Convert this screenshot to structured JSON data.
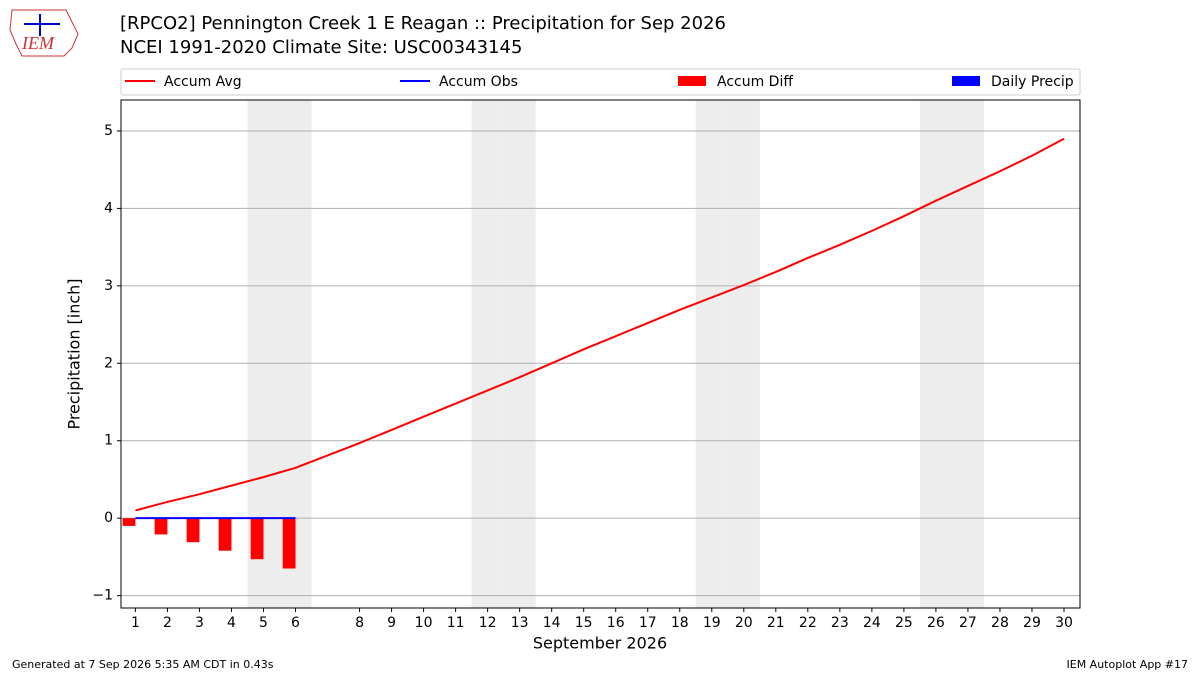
{
  "chart_data": {
    "type": "line",
    "title": "[RPCO2] Pennington Creek 1 E Reagan :: Precipitation for Sep 2026",
    "subtitle": "NCEI 1991-2020 Climate Site: USC00343145",
    "logo": "IEM",
    "x_label": "September 2026",
    "y_label": "Precipitation [inch]",
    "footer_left": "Generated at 7 Sep 2026 5:35 AM CDT in 0.43s",
    "footer_right": "IEM Autoplot App #17",
    "x": [
      1,
      2,
      3,
      4,
      5,
      6,
      7,
      8,
      9,
      10,
      11,
      12,
      13,
      14,
      15,
      16,
      17,
      18,
      19,
      20,
      21,
      22,
      23,
      24,
      25,
      26,
      27,
      28,
      29,
      30
    ],
    "xlim": [
      0.55,
      30.5
    ],
    "xticks": [
      1,
      2,
      3,
      4,
      5,
      6,
      8,
      9,
      10,
      11,
      12,
      13,
      14,
      15,
      16,
      17,
      18,
      19,
      20,
      21,
      22,
      23,
      24,
      25,
      26,
      27,
      28,
      29,
      30
    ],
    "ylim": [
      -1.16,
      5.4
    ],
    "yticks": [
      {
        "value": -1,
        "label": "−1"
      },
      0,
      1,
      2,
      3,
      4,
      5
    ],
    "grid": true,
    "shaded_days": [
      5,
      6,
      12,
      13,
      19,
      20,
      26,
      27
    ],
    "series": [
      {
        "name": "Accum Avg",
        "type": "line",
        "color": "#ff0000",
        "values": [
          0.1,
          0.21,
          0.31,
          0.42,
          0.53,
          0.65,
          0.81,
          0.97,
          1.14,
          1.31,
          1.48,
          1.65,
          1.82,
          2.0,
          2.18,
          2.35,
          2.52,
          2.69,
          2.85,
          3.01,
          3.18,
          3.36,
          3.53,
          3.71,
          3.9,
          4.1,
          4.29,
          4.48,
          4.68,
          4.9
        ]
      },
      {
        "name": "Accum Obs",
        "type": "line",
        "color": "#0000ff",
        "values": [
          0,
          0,
          0,
          0,
          0,
          0,
          null,
          null,
          null,
          null,
          null,
          null,
          null,
          null,
          null,
          null,
          null,
          null,
          null,
          null,
          null,
          null,
          null,
          null,
          null,
          null,
          null,
          null,
          null,
          null
        ]
      },
      {
        "name": "Accum Diff",
        "type": "bar",
        "color": "#ff0000",
        "values": [
          -0.1,
          -0.21,
          -0.31,
          -0.42,
          -0.53,
          -0.65,
          null,
          null,
          null,
          null,
          null,
          null,
          null,
          null,
          null,
          null,
          null,
          null,
          null,
          null,
          null,
          null,
          null,
          null,
          null,
          null,
          null,
          null,
          null,
          null
        ]
      },
      {
        "name": "Daily Precip",
        "type": "bar",
        "color": "#0000ff",
        "values": [
          0,
          0,
          0,
          0,
          0,
          0,
          null,
          null,
          null,
          null,
          null,
          null,
          null,
          null,
          null,
          null,
          null,
          null,
          null,
          null,
          null,
          null,
          null,
          null,
          null,
          null,
          null,
          null,
          null,
          null
        ]
      }
    ]
  }
}
